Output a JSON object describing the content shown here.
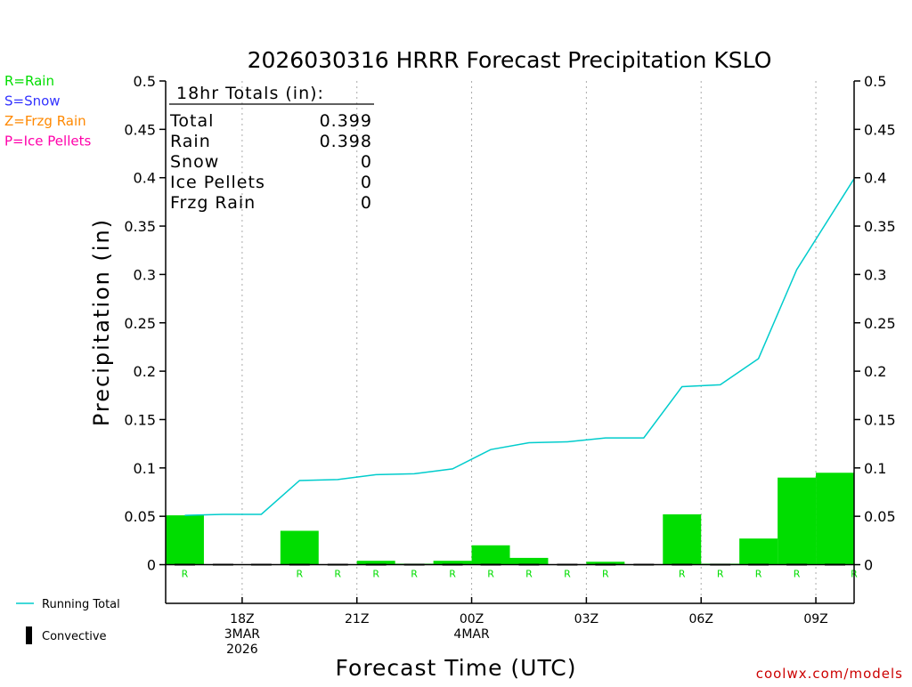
{
  "chart_data": {
    "type": "bar",
    "title": "2026030316 HRRR Forecast Precipitation KSLO",
    "ylabel": "Precipitation (in)",
    "xlabel": "Forecast Time (UTC)",
    "ylim": [
      -0.04,
      0.5
    ],
    "yticks": [
      0,
      0.05,
      0.1,
      0.15,
      0.2,
      0.25,
      0.3,
      0.35,
      0.4,
      0.45,
      0.5
    ],
    "ytick_labels": [
      "0",
      "0.05",
      "0.1",
      "0.15",
      "0.2",
      "0.25",
      "0.3",
      "0.35",
      "0.4",
      "0.45",
      "0.5"
    ],
    "xlim": [
      0,
      18
    ],
    "xticks": [
      {
        "hour": 2,
        "lines": [
          "18Z",
          "3MAR",
          "2026"
        ]
      },
      {
        "hour": 5,
        "lines": [
          "21Z"
        ]
      },
      {
        "hour": 8,
        "lines": [
          "00Z",
          "4MAR"
        ]
      },
      {
        "hour": 11,
        "lines": [
          "03Z"
        ]
      },
      {
        "hour": 14,
        "lines": [
          "06Z"
        ]
      },
      {
        "hour": 17,
        "lines": [
          "09Z"
        ]
      }
    ],
    "grid": "vertical dotted at labeled ticks",
    "precip_type_legend": [
      {
        "text": "R=Rain",
        "color": "#00dd00"
      },
      {
        "text": "S=Snow",
        "color": "#3333ff"
      },
      {
        "text": "Z=Frzg Rain",
        "color": "#ff8800"
      },
      {
        "text": "P=Ice Pellets",
        "color": "#ff00aa"
      }
    ],
    "series": [
      {
        "name": "Hourly Precipitation",
        "kind": "bar",
        "color": "#00dd00",
        "hours": [
          1,
          2,
          3,
          4,
          5,
          6,
          7,
          8,
          9,
          10,
          11,
          12,
          13,
          14,
          15,
          16,
          17,
          18
        ],
        "values": [
          0.051,
          0.0,
          0.0,
          0.035,
          0.0,
          0.004,
          0.001,
          0.004,
          0.02,
          0.007,
          0.0,
          0.003,
          0.0,
          0.052,
          0.001,
          0.027,
          0.09,
          0.095
        ]
      },
      {
        "name": "Running Total",
        "kind": "line",
        "color": "#00cccc",
        "hours": [
          1,
          2,
          3,
          4,
          5,
          6,
          7,
          8,
          9,
          10,
          11,
          12,
          13,
          14,
          15,
          16,
          17,
          18
        ],
        "values": [
          0.051,
          0.052,
          0.052,
          0.087,
          0.088,
          0.093,
          0.094,
          0.099,
          0.119,
          0.126,
          0.127,
          0.131,
          0.131,
          0.184,
          0.186,
          0.213,
          0.305,
          0.399
        ]
      },
      {
        "name": "Convective",
        "kind": "bar",
        "color": "#000000",
        "hours": [
          1,
          2,
          3,
          4,
          5,
          6,
          7,
          8,
          9,
          10,
          11,
          12,
          13,
          14,
          15,
          16,
          17,
          18
        ],
        "values": [
          0,
          0,
          0,
          0,
          0,
          0,
          0,
          0,
          0,
          0,
          0,
          0,
          0,
          0,
          0,
          0,
          0,
          0
        ]
      }
    ],
    "type_markers": {
      "hours": [
        1,
        4,
        5,
        6,
        7,
        8,
        9,
        10,
        11,
        12,
        14,
        15,
        16,
        17,
        18
      ],
      "letter": "R",
      "color": "#00dd00"
    },
    "totals_box": {
      "heading": "18hr Totals (in):",
      "rows": [
        {
          "label": "Total",
          "value": "0.399"
        },
        {
          "label": "Rain",
          "value": "0.398"
        },
        {
          "label": "Snow",
          "value": "0"
        },
        {
          "label": "Ice Pellets",
          "value": "0"
        },
        {
          "label": "Frzg Rain",
          "value": "0"
        }
      ]
    },
    "legend": [
      {
        "name": "Running Total",
        "symbol": "line",
        "color": "#00cccc"
      },
      {
        "name": "Convective",
        "symbol": "bar",
        "color": "#000000"
      }
    ],
    "watermark": {
      "text": "coolwx.com/models",
      "color": "#cc0000"
    }
  }
}
